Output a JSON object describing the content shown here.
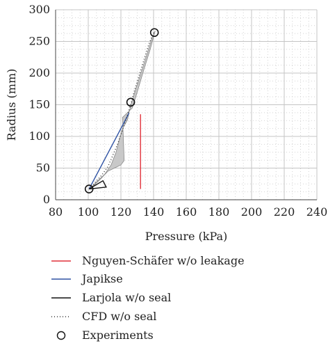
{
  "chart_data": {
    "type": "line",
    "xlabel": "Pressure (kPa)",
    "ylabel": "Radius (mm)",
    "xlim": [
      80,
      240
    ],
    "ylim": [
      0,
      300
    ],
    "xticks": [
      80,
      100,
      120,
      140,
      160,
      180,
      200,
      220,
      240
    ],
    "yticks": [
      0,
      50,
      100,
      150,
      200,
      250,
      300
    ],
    "grid": true,
    "legend_position": "bottom",
    "band_color": "#c8c8c8",
    "series": [
      {
        "name": "Nguyen-Schäfer w/o leakage",
        "color": "#e0303a",
        "style": "solid",
        "x": [
          132,
          132
        ],
        "y": [
          17,
          135
        ]
      },
      {
        "name": "Japikse",
        "color": "#2e52a3",
        "style": "solid",
        "x": [
          100.5,
          125
        ],
        "y": [
          17,
          137
        ]
      },
      {
        "name": "Larjola w/o seal",
        "color": "#111111",
        "style": "solid",
        "x": [
          100.5,
          109,
          111,
          100.5
        ],
        "y": [
          17,
          30,
          20,
          17
        ]
      },
      {
        "name": "CFD w/o seal",
        "color": "#333333",
        "style": "dotted",
        "x": [
          101,
          104,
          108,
          112,
          115,
          118,
          120,
          122,
          124,
          126,
          128,
          131,
          134,
          137,
          140
        ],
        "y": [
          17,
          27,
          38,
          52,
          70,
          88,
          103,
          118,
          134,
          150,
          170,
          195,
          220,
          245,
          264
        ]
      },
      {
        "name": "Experiments",
        "color": "#111111",
        "style": "marker",
        "x": [
          100.5,
          126,
          140.5
        ],
        "y": [
          17,
          154,
          264
        ]
      }
    ],
    "band": {
      "upper": {
        "x": [
          101,
          105,
          110,
          114,
          117,
          119,
          121,
          124,
          125,
          127,
          131,
          135,
          139,
          141
        ],
        "y": [
          17,
          28,
          40,
          55,
          75,
          95,
          112,
          126,
          138,
          158,
          190,
          222,
          255,
          267
        ]
      },
      "lower": {
        "x": [
          141,
          138,
          134,
          130,
          127,
          123,
          121,
          122,
          120,
          116,
          112,
          108,
          104,
          101
        ],
        "y": [
          267,
          238,
          205,
          170,
          145,
          135,
          130,
          62,
          55,
          50,
          45,
          34,
          24,
          17
        ]
      }
    }
  }
}
